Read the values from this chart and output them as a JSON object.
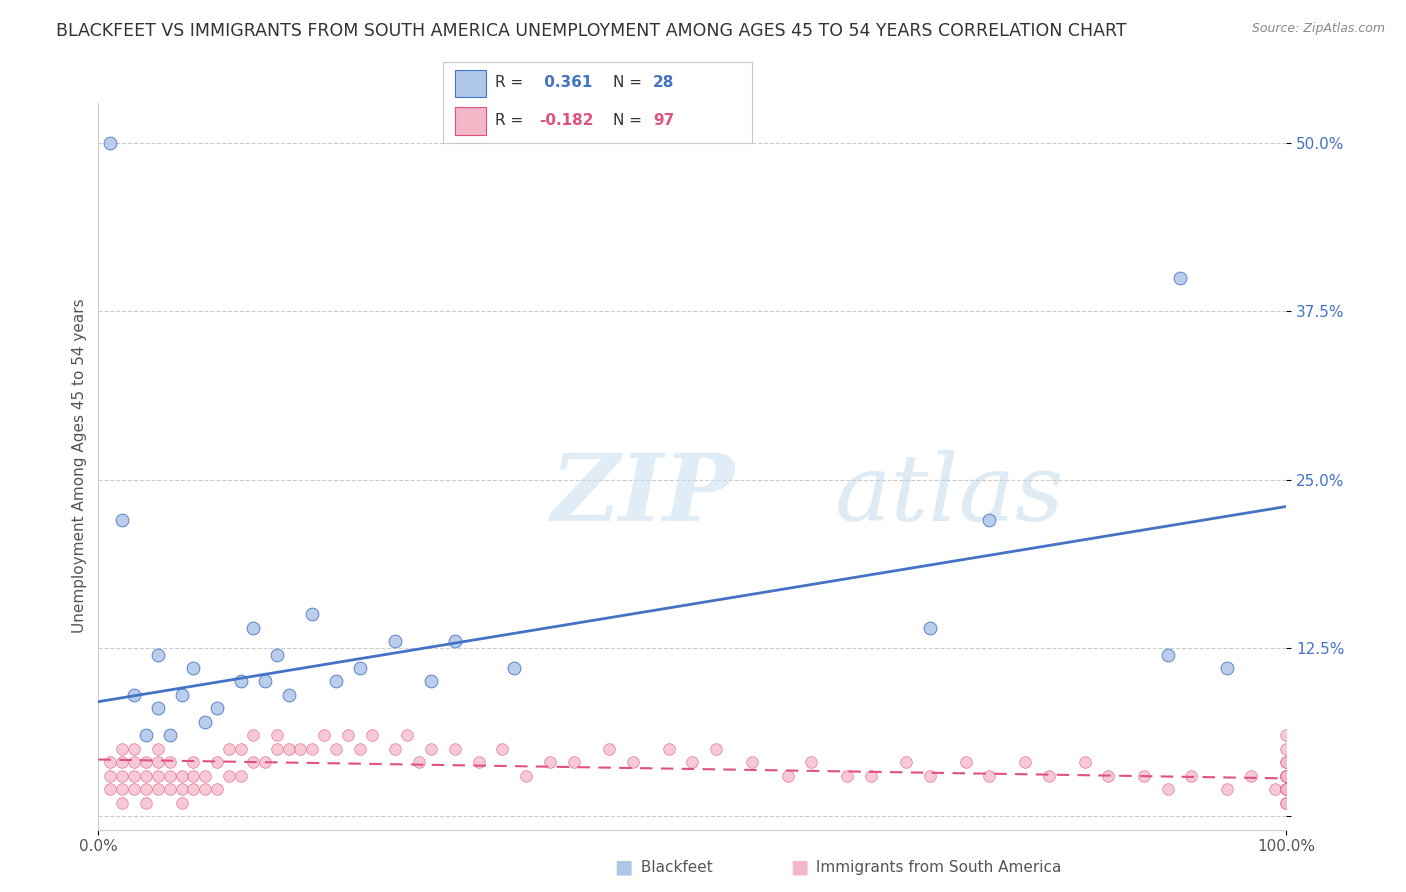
{
  "title": "BLACKFEET VS IMMIGRANTS FROM SOUTH AMERICA UNEMPLOYMENT AMONG AGES 45 TO 54 YEARS CORRELATION CHART",
  "source": "Source: ZipAtlas.com",
  "ylabel": "Unemployment Among Ages 45 to 54 years",
  "watermark": "ZIPatlas",
  "xlim": [
    0,
    100
  ],
  "ylim": [
    -1,
    53
  ],
  "legend_r1": "R =  0.361",
  "legend_n1": "N = 28",
  "legend_r2": "R = -0.182",
  "legend_n2": "N = 97",
  "blue_color": "#4472c4",
  "blue_fill": "#aec6e8",
  "pink_color": "#e05080",
  "pink_fill": "#f4b8c8",
  "blue_scatter_x": [
    1,
    2,
    3,
    4,
    5,
    5,
    6,
    7,
    8,
    9,
    10,
    12,
    13,
    14,
    15,
    16,
    18,
    20,
    22,
    25,
    28,
    30,
    35,
    70,
    75,
    90,
    91,
    95
  ],
  "blue_scatter_y": [
    50,
    22,
    9,
    6,
    8,
    12,
    6,
    9,
    11,
    7,
    8,
    10,
    14,
    10,
    12,
    9,
    15,
    10,
    11,
    13,
    10,
    13,
    11,
    14,
    22,
    12,
    40,
    11
  ],
  "pink_scatter_x": [
    1,
    1,
    1,
    2,
    2,
    2,
    2,
    2,
    3,
    3,
    3,
    3,
    4,
    4,
    4,
    4,
    5,
    5,
    5,
    5,
    6,
    6,
    6,
    7,
    7,
    7,
    8,
    8,
    8,
    9,
    9,
    10,
    10,
    11,
    11,
    12,
    12,
    13,
    13,
    14,
    15,
    15,
    16,
    17,
    18,
    19,
    20,
    21,
    22,
    23,
    25,
    26,
    27,
    28,
    30,
    32,
    34,
    36,
    38,
    40,
    43,
    45,
    48,
    50,
    52,
    55,
    58,
    60,
    63,
    65,
    68,
    70,
    73,
    75,
    78,
    80,
    83,
    85,
    88,
    90,
    92,
    95,
    97,
    99,
    100,
    100,
    100,
    100,
    100,
    100,
    100,
    100,
    100,
    100,
    100,
    100,
    100
  ],
  "pink_scatter_y": [
    2,
    3,
    4,
    1,
    2,
    3,
    4,
    5,
    2,
    3,
    4,
    5,
    1,
    2,
    3,
    4,
    2,
    3,
    4,
    5,
    2,
    3,
    4,
    1,
    2,
    3,
    2,
    3,
    4,
    2,
    3,
    2,
    4,
    3,
    5,
    3,
    5,
    4,
    6,
    4,
    5,
    6,
    5,
    5,
    5,
    6,
    5,
    6,
    5,
    6,
    5,
    6,
    4,
    5,
    5,
    4,
    5,
    3,
    4,
    4,
    5,
    4,
    5,
    4,
    5,
    4,
    3,
    4,
    3,
    3,
    4,
    3,
    4,
    3,
    4,
    3,
    4,
    3,
    3,
    2,
    3,
    2,
    3,
    2,
    3,
    4,
    2,
    3,
    1,
    2,
    3,
    4,
    5,
    6,
    2,
    1,
    3
  ],
  "blue_line_x": [
    0,
    100
  ],
  "blue_line_y": [
    8.5,
    23.0
  ],
  "pink_line_x": [
    0,
    100
  ],
  "pink_line_y": [
    4.2,
    2.8
  ],
  "grid_color": "#cccccc",
  "tick_color": "#4472c4",
  "title_fontsize": 12.5,
  "label_fontsize": 11,
  "tick_fontsize": 11
}
